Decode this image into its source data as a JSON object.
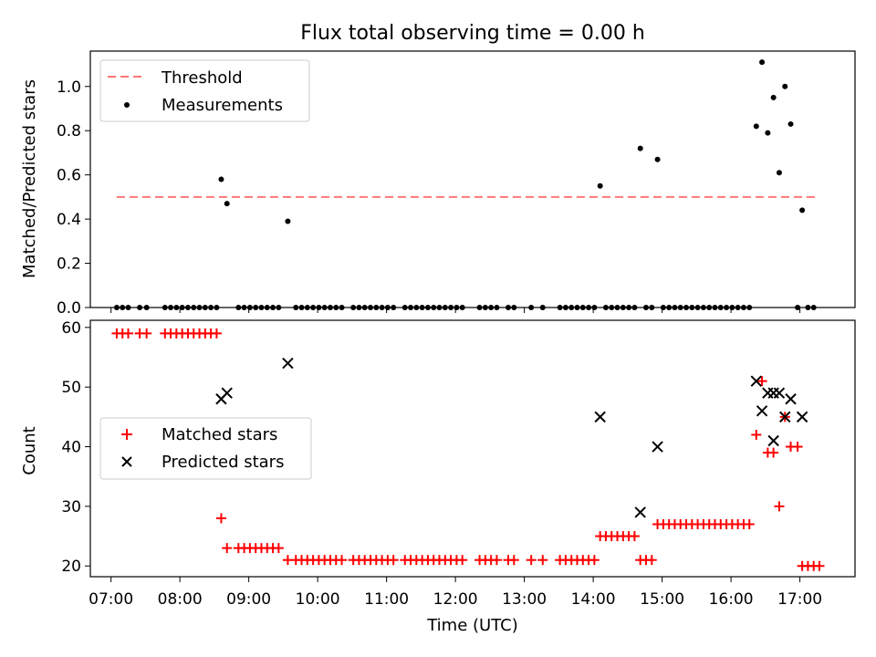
{
  "chart_data": [
    {
      "type": "scatter",
      "title": "Flux total observing time = 0.00 h",
      "xlabel": "",
      "ylabel": "Matched/Predicted stars",
      "xlim": [
        "06:42",
        "17:48"
      ],
      "ylim": [
        0,
        1.16
      ],
      "yticks": [
        0.0,
        0.2,
        0.4,
        0.6,
        0.8,
        1.0
      ],
      "ytick_labels": [
        "0.0",
        "0.2",
        "0.4",
        "0.6",
        "0.8",
        "1.0"
      ],
      "legend_position": "upper-left",
      "series": [
        {
          "name": "Threshold",
          "type": "line",
          "style": "dashed",
          "color": "#ff7777",
          "points": [
            [
              "07:05",
              0.5
            ],
            [
              "17:13",
              0.5
            ]
          ]
        },
        {
          "name": "Measurements",
          "type": "scatter",
          "marker": "dot",
          "color": "#000000",
          "points": [
            [
              "07:05",
              0
            ],
            [
              "07:10",
              0
            ],
            [
              "07:15",
              0
            ],
            [
              "07:25",
              0
            ],
            [
              "07:31",
              0
            ],
            [
              "07:47",
              0
            ],
            [
              "07:52",
              0
            ],
            [
              "07:57",
              0
            ],
            [
              "08:02",
              0
            ],
            [
              "08:07",
              0
            ],
            [
              "08:12",
              0
            ],
            [
              "08:17",
              0
            ],
            [
              "08:22",
              0
            ],
            [
              "08:27",
              0
            ],
            [
              "08:32",
              0
            ],
            [
              "08:36",
              0.58
            ],
            [
              "08:41",
              0.47
            ],
            [
              "08:51",
              0
            ],
            [
              "08:56",
              0
            ],
            [
              "09:01",
              0
            ],
            [
              "09:06",
              0
            ],
            [
              "09:11",
              0
            ],
            [
              "09:16",
              0
            ],
            [
              "09:21",
              0
            ],
            [
              "09:26",
              0
            ],
            [
              "09:34",
              0.39
            ],
            [
              "09:41",
              0
            ],
            [
              "09:46",
              0
            ],
            [
              "09:51",
              0
            ],
            [
              "09:56",
              0
            ],
            [
              "10:01",
              0
            ],
            [
              "10:06",
              0
            ],
            [
              "10:11",
              0
            ],
            [
              "10:16",
              0
            ],
            [
              "10:21",
              0
            ],
            [
              "10:31",
              0
            ],
            [
              "10:36",
              0
            ],
            [
              "10:41",
              0
            ],
            [
              "10:46",
              0
            ],
            [
              "10:51",
              0
            ],
            [
              "10:56",
              0
            ],
            [
              "11:01",
              0
            ],
            [
              "11:06",
              0
            ],
            [
              "11:16",
              0
            ],
            [
              "11:21",
              0
            ],
            [
              "11:26",
              0
            ],
            [
              "11:31",
              0
            ],
            [
              "11:36",
              0
            ],
            [
              "11:41",
              0
            ],
            [
              "11:46",
              0
            ],
            [
              "11:51",
              0
            ],
            [
              "11:56",
              0
            ],
            [
              "12:01",
              0
            ],
            [
              "12:06",
              0
            ],
            [
              "12:21",
              0
            ],
            [
              "12:26",
              0
            ],
            [
              "12:31",
              0
            ],
            [
              "12:36",
              0
            ],
            [
              "12:46",
              0
            ],
            [
              "12:51",
              0
            ],
            [
              "13:06",
              0
            ],
            [
              "13:16",
              0
            ],
            [
              "13:31",
              0
            ],
            [
              "13:36",
              0
            ],
            [
              "13:41",
              0
            ],
            [
              "13:46",
              0
            ],
            [
              "13:51",
              0
            ],
            [
              "13:56",
              0
            ],
            [
              "14:01",
              0
            ],
            [
              "14:06",
              0.55
            ],
            [
              "14:11",
              0
            ],
            [
              "14:16",
              0
            ],
            [
              "14:21",
              0
            ],
            [
              "14:26",
              0
            ],
            [
              "14:31",
              0
            ],
            [
              "14:36",
              0
            ],
            [
              "14:41",
              0.72
            ],
            [
              "14:46",
              0
            ],
            [
              "14:51",
              0
            ],
            [
              "14:56",
              0.67
            ],
            [
              "15:01",
              0
            ],
            [
              "15:06",
              0
            ],
            [
              "15:11",
              0
            ],
            [
              "15:16",
              0
            ],
            [
              "15:21",
              0
            ],
            [
              "15:26",
              0
            ],
            [
              "15:31",
              0
            ],
            [
              "15:36",
              0
            ],
            [
              "15:41",
              0
            ],
            [
              "15:46",
              0
            ],
            [
              "15:51",
              0
            ],
            [
              "15:56",
              0
            ],
            [
              "16:01",
              0
            ],
            [
              "16:06",
              0
            ],
            [
              "16:11",
              0
            ],
            [
              "16:16",
              0
            ],
            [
              "16:22",
              0.82
            ],
            [
              "16:27",
              1.11
            ],
            [
              "16:32",
              0.79
            ],
            [
              "16:37",
              0.95
            ],
            [
              "16:42",
              0.61
            ],
            [
              "16:47",
              1.0
            ],
            [
              "16:52",
              0.83
            ],
            [
              "16:58",
              0
            ],
            [
              "17:02",
              0.44
            ],
            [
              "17:07",
              0
            ],
            [
              "17:12",
              0
            ]
          ]
        }
      ]
    },
    {
      "type": "scatter",
      "title": "",
      "xlabel": "Time (UTC)",
      "ylabel": "Count",
      "xlim": [
        "06:42",
        "17:48"
      ],
      "ylim": [
        18.2,
        61.2
      ],
      "xticks": [
        "07:00",
        "08:00",
        "09:00",
        "10:00",
        "11:00",
        "12:00",
        "13:00",
        "14:00",
        "15:00",
        "16:00",
        "17:00"
      ],
      "yticks": [
        20,
        30,
        40,
        50,
        60
      ],
      "ytick_labels": [
        "20",
        "30",
        "40",
        "50",
        "60"
      ],
      "legend_position": "center-left",
      "series": [
        {
          "name": "Matched stars",
          "type": "scatter",
          "marker": "plus",
          "color": "#ff0000",
          "points": [
            [
              "07:05",
              59
            ],
            [
              "07:10",
              59
            ],
            [
              "07:15",
              59
            ],
            [
              "07:25",
              59
            ],
            [
              "07:31",
              59
            ],
            [
              "07:47",
              59
            ],
            [
              "07:52",
              59
            ],
            [
              "07:57",
              59
            ],
            [
              "08:02",
              59
            ],
            [
              "08:07",
              59
            ],
            [
              "08:12",
              59
            ],
            [
              "08:17",
              59
            ],
            [
              "08:22",
              59
            ],
            [
              "08:27",
              59
            ],
            [
              "08:32",
              59
            ],
            [
              "08:36",
              28
            ],
            [
              "08:41",
              23
            ],
            [
              "08:51",
              23
            ],
            [
              "08:56",
              23
            ],
            [
              "09:01",
              23
            ],
            [
              "09:06",
              23
            ],
            [
              "09:11",
              23
            ],
            [
              "09:16",
              23
            ],
            [
              "09:21",
              23
            ],
            [
              "09:26",
              23
            ],
            [
              "09:34",
              21
            ],
            [
              "09:41",
              21
            ],
            [
              "09:46",
              21
            ],
            [
              "09:51",
              21
            ],
            [
              "09:56",
              21
            ],
            [
              "10:01",
              21
            ],
            [
              "10:06",
              21
            ],
            [
              "10:11",
              21
            ],
            [
              "10:16",
              21
            ],
            [
              "10:21",
              21
            ],
            [
              "10:31",
              21
            ],
            [
              "10:36",
              21
            ],
            [
              "10:41",
              21
            ],
            [
              "10:46",
              21
            ],
            [
              "10:51",
              21
            ],
            [
              "10:56",
              21
            ],
            [
              "11:01",
              21
            ],
            [
              "11:06",
              21
            ],
            [
              "11:16",
              21
            ],
            [
              "11:21",
              21
            ],
            [
              "11:26",
              21
            ],
            [
              "11:31",
              21
            ],
            [
              "11:36",
              21
            ],
            [
              "11:41",
              21
            ],
            [
              "11:46",
              21
            ],
            [
              "11:51",
              21
            ],
            [
              "11:56",
              21
            ],
            [
              "12:01",
              21
            ],
            [
              "12:06",
              21
            ],
            [
              "12:21",
              21
            ],
            [
              "12:26",
              21
            ],
            [
              "12:31",
              21
            ],
            [
              "12:36",
              21
            ],
            [
              "12:46",
              21
            ],
            [
              "12:51",
              21
            ],
            [
              "13:06",
              21
            ],
            [
              "13:16",
              21
            ],
            [
              "13:31",
              21
            ],
            [
              "13:36",
              21
            ],
            [
              "13:41",
              21
            ],
            [
              "13:46",
              21
            ],
            [
              "13:51",
              21
            ],
            [
              "13:56",
              21
            ],
            [
              "14:01",
              21
            ],
            [
              "14:06",
              25
            ],
            [
              "14:11",
              25
            ],
            [
              "14:16",
              25
            ],
            [
              "14:21",
              25
            ],
            [
              "14:26",
              25
            ],
            [
              "14:31",
              25
            ],
            [
              "14:36",
              25
            ],
            [
              "14:41",
              21
            ],
            [
              "14:46",
              21
            ],
            [
              "14:51",
              21
            ],
            [
              "14:56",
              27
            ],
            [
              "15:01",
              27
            ],
            [
              "15:06",
              27
            ],
            [
              "15:11",
              27
            ],
            [
              "15:16",
              27
            ],
            [
              "15:21",
              27
            ],
            [
              "15:26",
              27
            ],
            [
              "15:31",
              27
            ],
            [
              "15:36",
              27
            ],
            [
              "15:41",
              27
            ],
            [
              "15:46",
              27
            ],
            [
              "15:51",
              27
            ],
            [
              "15:56",
              27
            ],
            [
              "16:01",
              27
            ],
            [
              "16:06",
              27
            ],
            [
              "16:11",
              27
            ],
            [
              "16:16",
              27
            ],
            [
              "16:22",
              42
            ],
            [
              "16:27",
              51
            ],
            [
              "16:32",
              39
            ],
            [
              "16:37",
              39
            ],
            [
              "16:42",
              30
            ],
            [
              "16:47",
              45
            ],
            [
              "16:52",
              40
            ],
            [
              "16:58",
              40
            ],
            [
              "17:02",
              20
            ],
            [
              "17:07",
              20
            ],
            [
              "17:12",
              20
            ],
            [
              "17:17",
              20
            ]
          ]
        },
        {
          "name": "Predicted stars",
          "type": "scatter",
          "marker": "x",
          "color": "#000000",
          "points": [
            [
              "08:36",
              48
            ],
            [
              "08:41",
              49
            ],
            [
              "09:34",
              54
            ],
            [
              "14:06",
              45
            ],
            [
              "14:41",
              29
            ],
            [
              "14:56",
              40
            ],
            [
              "16:22",
              51
            ],
            [
              "16:27",
              46
            ],
            [
              "16:32",
              49
            ],
            [
              "16:37",
              49
            ],
            [
              "16:37",
              41
            ],
            [
              "16:42",
              49
            ],
            [
              "16:47",
              45
            ],
            [
              "16:52",
              48
            ],
            [
              "17:02",
              45
            ]
          ]
        }
      ]
    }
  ]
}
